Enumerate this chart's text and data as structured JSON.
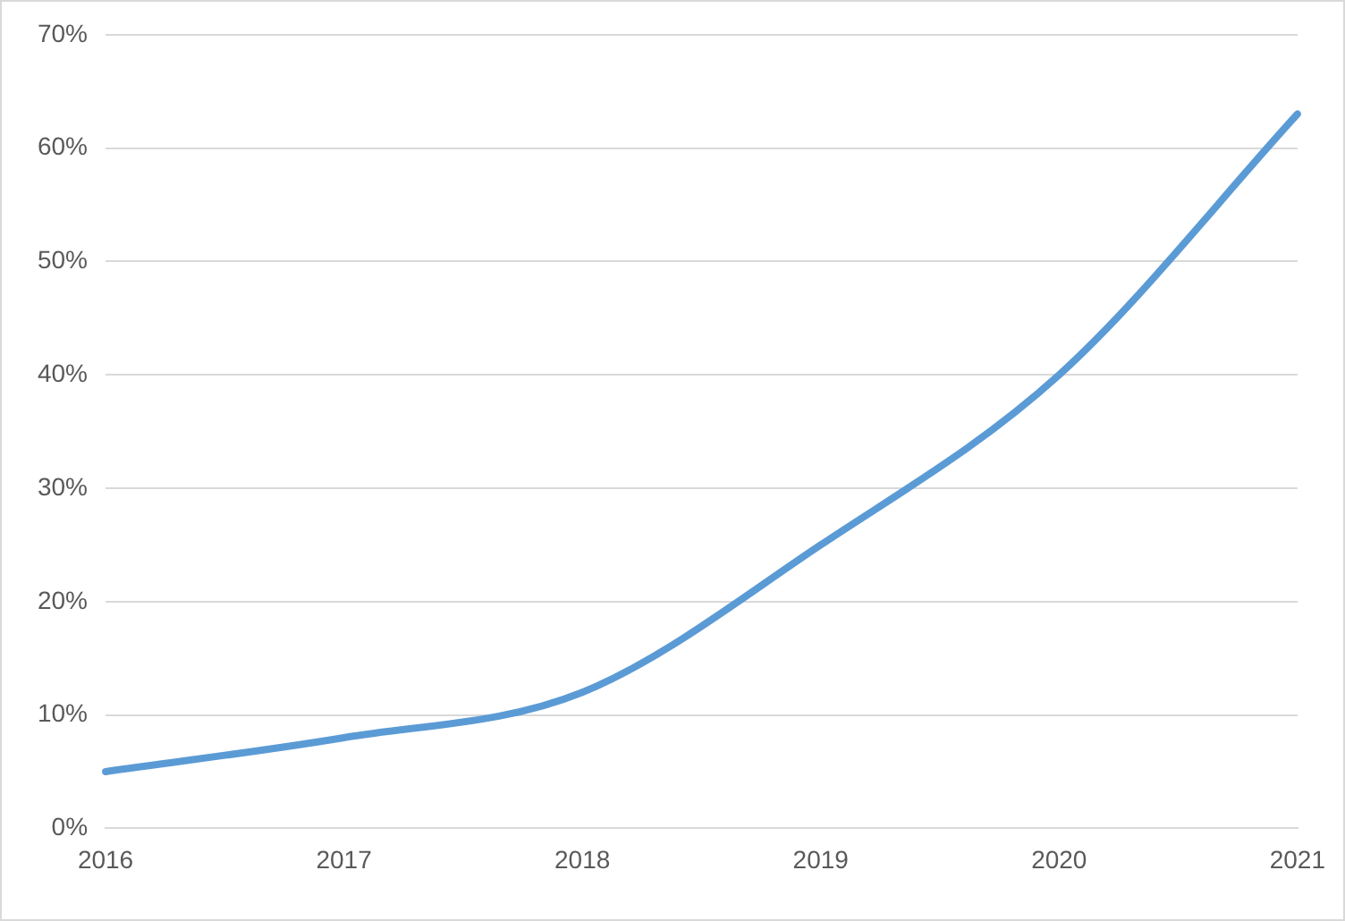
{
  "chart_data": {
    "type": "line",
    "categories": [
      "2016",
      "2017",
      "2018",
      "2019",
      "2020",
      "2021"
    ],
    "series": [
      {
        "color": "#5b9bd5",
        "values": [
          5,
          8,
          12,
          25,
          40,
          63
        ]
      }
    ],
    "ylim": [
      0,
      70
    ],
    "yticks": [
      {
        "value": 0,
        "label": "0%"
      },
      {
        "value": 10,
        "label": "10%"
      },
      {
        "value": 20,
        "label": "20%"
      },
      {
        "value": 30,
        "label": "30%"
      },
      {
        "value": 40,
        "label": "40%"
      },
      {
        "value": 50,
        "label": "50%"
      },
      {
        "value": 60,
        "label": "60%"
      },
      {
        "value": 70,
        "label": "70%"
      }
    ],
    "grid": "y",
    "legend": false,
    "marker": "none",
    "line_style": "solid"
  }
}
